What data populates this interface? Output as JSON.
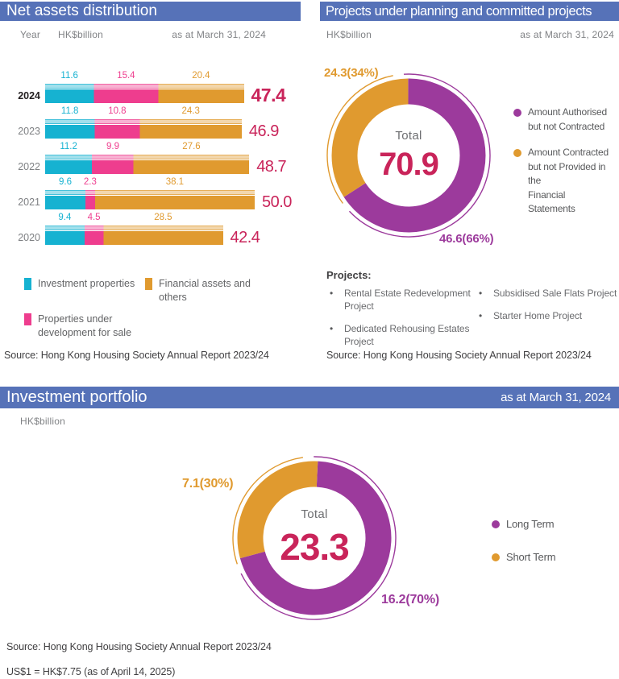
{
  "panels": {
    "net_assets": {
      "title": "Net assets distribution",
      "year_label": "Year",
      "unit": "HK$billion",
      "as_at": "as at March 31, 2024",
      "source": "Source: Hong Kong Housing Society Annual Report 2023/24",
      "legend": [
        {
          "series": 0,
          "lines": "Investment properties"
        },
        {
          "series": 2,
          "lines": "Financial assets and\nothers"
        },
        {
          "series": 1,
          "lines": "Properties under\ndevelopment for sale"
        }
      ]
    },
    "projects": {
      "title": "Projects under planning and committed projects",
      "unit": "HK$billion",
      "as_at": "as at March 31, 2024",
      "source": "Source: Hong Kong Housing Society Annual Report 2023/24",
      "legend_lines": [
        "Amount Authorised\nbut not Contracted",
        "Amount Contracted\nbut not Provided in the\nFinancial Statements"
      ],
      "projects_heading": "Projects:",
      "project_lines": [
        "Rental Estate Redevelopment\nProject",
        "Dedicated Rehousing Estates\nProject",
        "Subsidised Sale Flats Project",
        "Starter Home Project"
      ]
    },
    "portfolio": {
      "title": "Investment portfolio",
      "unit": "HK$billion",
      "as_at": "as at March 31, 2024",
      "source": "Source: Hong Kong Housing Society Annual Report 2023/24",
      "footnote": "US$1 = HK$7.75 (as of April 14, 2025)"
    }
  },
  "colors": {
    "header_blue": "#5672B8",
    "cyan": "#16B2D1",
    "pink": "#EE3D8E",
    "orange": "#E09A2F",
    "purple": "#9C3A9C",
    "crimson": "#C9245A",
    "gray_text": "#808285"
  },
  "chart_data": [
    {
      "type": "bar",
      "title": "Net assets distribution",
      "unit": "HK$billion",
      "orientation": "horizontal",
      "stacked": true,
      "categories": [
        "2024",
        "2023",
        "2022",
        "2021",
        "2020"
      ],
      "series": [
        {
          "name": "Investment properties",
          "color": "#16B2D1",
          "values": [
            11.6,
            11.8,
            11.2,
            9.6,
            9.4
          ]
        },
        {
          "name": "Properties under development for sale",
          "color": "#EE3D8E",
          "values": [
            15.4,
            10.8,
            9.9,
            2.3,
            4.5
          ]
        },
        {
          "name": "Financial assets and others",
          "color": "#E09A2F",
          "values": [
            20.4,
            24.3,
            27.6,
            38.1,
            28.5
          ]
        }
      ],
      "totals": [
        47.4,
        46.9,
        48.7,
        50.0,
        42.4
      ],
      "highlight_category": "2024",
      "xlim": [
        0,
        50
      ]
    },
    {
      "type": "pie",
      "title": "Projects under planning and committed projects",
      "unit": "HK$billion",
      "total_label": "Total",
      "total": 70.9,
      "legend_position": "right",
      "slices": [
        {
          "name": "Amount Authorised but not Contracted",
          "value": 46.6,
          "pct": 66,
          "label": "46.6(66%)",
          "color": "#9C3A9C"
        },
        {
          "name": "Amount Contracted but not Provided in the Financial Statements",
          "value": 24.3,
          "pct": 34,
          "label": "24.3(34%)",
          "color": "#E09A2F"
        }
      ]
    },
    {
      "type": "pie",
      "title": "Investment portfolio",
      "unit": "HK$billion",
      "total_label": "Total",
      "total": 23.3,
      "legend_position": "right",
      "slices": [
        {
          "name": "Long Term",
          "value": 16.2,
          "pct": 70,
          "label": "16.2(70%)",
          "color": "#9C3A9C"
        },
        {
          "name": "Short Term",
          "value": 7.1,
          "pct": 30,
          "label": "7.1(30%)",
          "color": "#E09A2F"
        }
      ]
    }
  ]
}
